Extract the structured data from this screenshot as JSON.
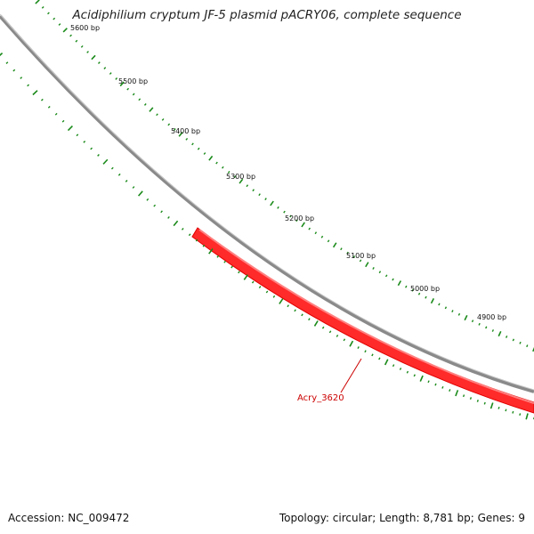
{
  "title": "Acidiphilium cryptum JF-5 plasmid pACRY06, complete sequence",
  "footer": {
    "accession": "Accession: NC_009472",
    "topology": "Topology: circular; Length: 8,781 bp; Genes: 9"
  },
  "colors": {
    "backbone": "#8a8a8a",
    "tick": "#1a8a1a",
    "gene": "#ff0000",
    "label": "#cc0000"
  },
  "scale_labels": [
    "5600 bp",
    "5500 bp",
    "5400 bp",
    "5300 bp",
    "5200 bp",
    "5100 bp",
    "5000 bp",
    "4900 bp"
  ],
  "genes": [
    {
      "name": "Acry_3620"
    }
  ]
}
